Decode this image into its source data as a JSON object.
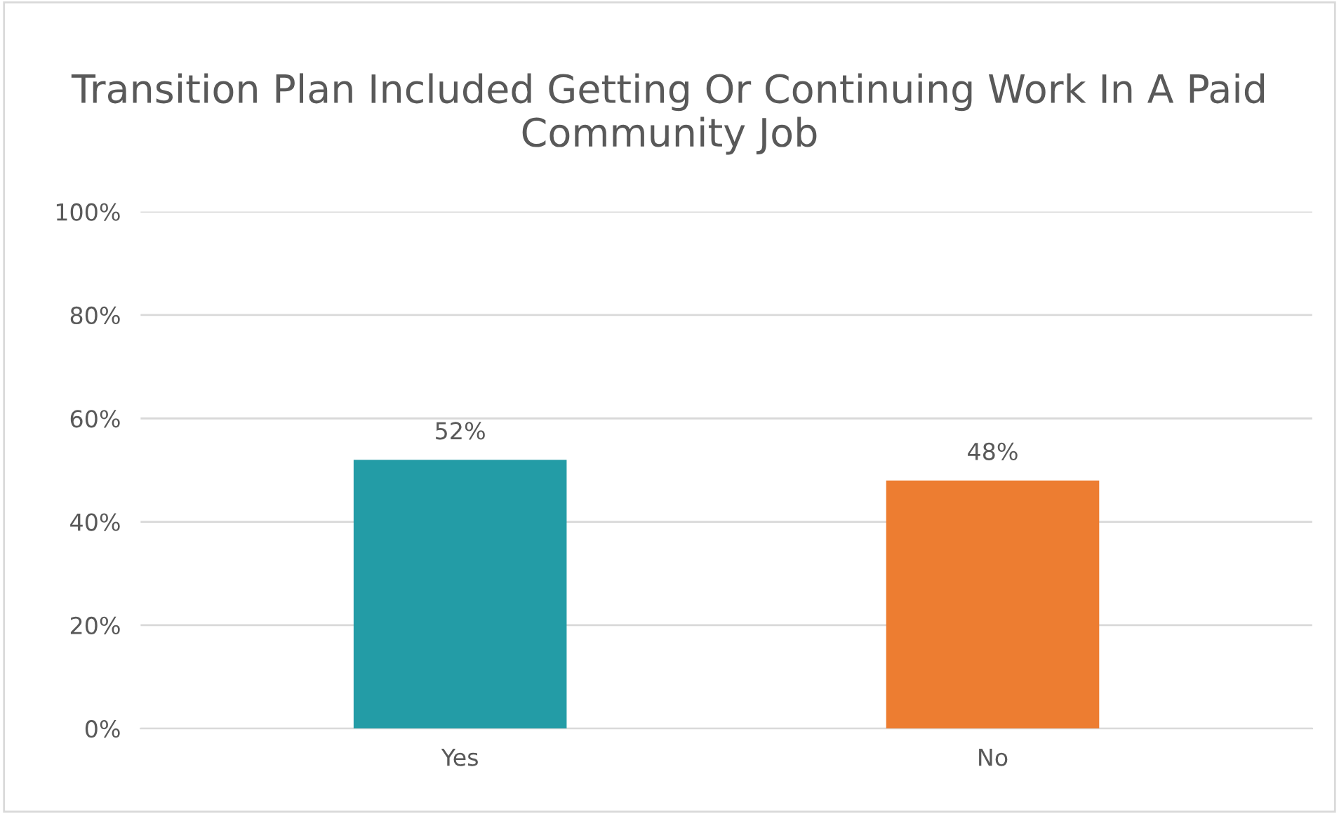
{
  "chart_data": {
    "type": "bar",
    "title": "Transition Plan Included Getting Or Continuing Work In A Paid Community Job",
    "categories": [
      "Yes",
      "No"
    ],
    "values": [
      52,
      48
    ],
    "colors": [
      "#239ca6",
      "#ed7d31"
    ],
    "value_labels": [
      "52%",
      "48%"
    ],
    "ylim": [
      0,
      100
    ],
    "yticks": [
      {
        "value": 0,
        "label": "0%"
      },
      {
        "value": 20,
        "label": "20%"
      },
      {
        "value": 40,
        "label": "40%"
      },
      {
        "value": 60,
        "label": "60%"
      },
      {
        "value": 80,
        "label": "80%"
      },
      {
        "value": 100,
        "label": "100%"
      }
    ],
    "grid": "y"
  }
}
